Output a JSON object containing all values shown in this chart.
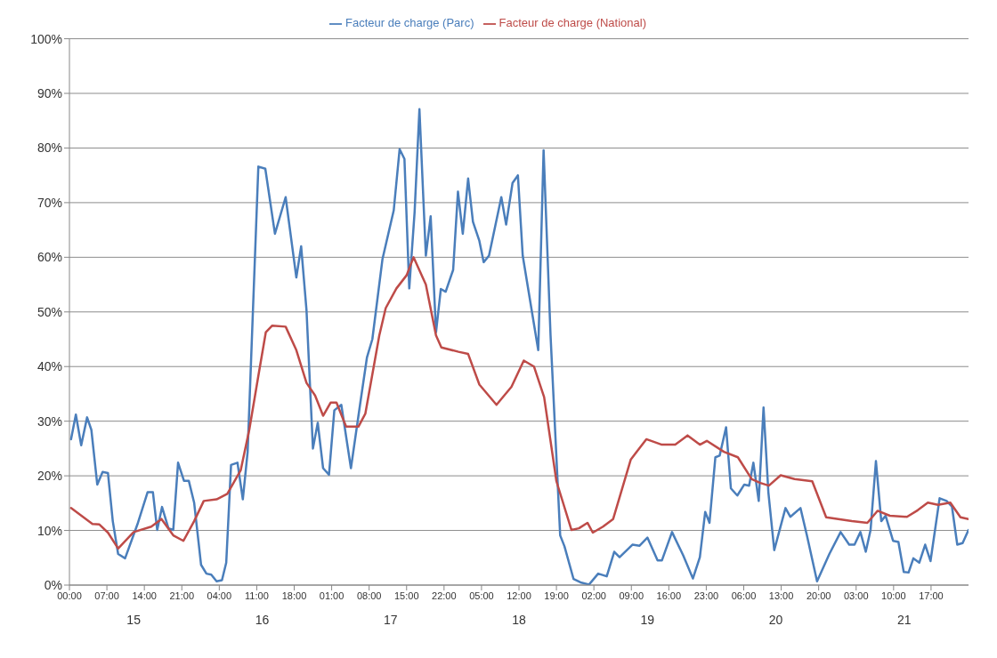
{
  "chart_data": {
    "type": "line",
    "xlim": [
      "--01-15T00:00",
      "--01-22T00:00"
    ],
    "xticks": [
      {
        "value": "--01-15T00:00",
        "label": "00:00"
      },
      {
        "value": "--01-15T07:00",
        "label": "07:00"
      },
      {
        "value": "--01-15T14:00",
        "label": "14:00"
      },
      {
        "value": "--01-15T21:00",
        "label": "21:00"
      },
      {
        "value": "--01-16T04:00",
        "label": "04:00"
      },
      {
        "value": "--01-16T11:00",
        "label": "11:00"
      },
      {
        "value": "--01-16T18:00",
        "label": "18:00"
      },
      {
        "value": "--01-17T01:00",
        "label": "01:00"
      },
      {
        "value": "--01-17T08:00",
        "label": "08:00"
      },
      {
        "value": "--01-17T15:00",
        "label": "15:00"
      },
      {
        "value": "--01-17T22:00",
        "label": "22:00"
      },
      {
        "value": "--01-18T05:00",
        "label": "05:00"
      },
      {
        "value": "--01-18T12:00",
        "label": "12:00"
      },
      {
        "value": "--01-18T19:00",
        "label": "19:00"
      },
      {
        "value": "--01-19T02:00",
        "label": "02:00"
      },
      {
        "value": "--01-19T09:00",
        "label": "09:00"
      },
      {
        "value": "--01-19T16:00",
        "label": "16:00"
      },
      {
        "value": "--01-19T23:00",
        "label": "23:00"
      },
      {
        "value": "--01-20T06:00",
        "label": "06:00"
      },
      {
        "value": "--01-20T13:00",
        "label": "13:00"
      },
      {
        "value": "--01-20T20:00",
        "label": "20:00"
      },
      {
        "value": "--01-21T03:00",
        "label": "03:00"
      },
      {
        "value": "--01-21T10:00",
        "label": "10:00"
      },
      {
        "value": "--01-21T17:00",
        "label": "17:00"
      }
    ],
    "x2lim": [
      "--01-15T00:00",
      "--01-22T00:00"
    ],
    "x2ticks": [
      {
        "value": "--01-15T12:00",
        "label": "15"
      },
      {
        "value": "--01-16T12:00",
        "label": "16"
      },
      {
        "value": "--01-17T12:00",
        "label": "17"
      },
      {
        "value": "--01-18T12:00",
        "label": "18"
      },
      {
        "value": "--01-19T12:00",
        "label": "19"
      },
      {
        "value": "--01-20T12:00",
        "label": "20"
      },
      {
        "value": "--01-21T12:00",
        "label": "21"
      }
    ],
    "ylim": [
      0,
      100
    ],
    "yticks": [
      {
        "value": 0,
        "label": "0%"
      },
      {
        "value": 10,
        "label": "10%"
      },
      {
        "value": 20,
        "label": "20%"
      },
      {
        "value": 30,
        "label": "30%"
      },
      {
        "value": 40,
        "label": "40%"
      },
      {
        "value": 50,
        "label": "50%"
      },
      {
        "value": 60,
        "label": "60%"
      },
      {
        "value": 70,
        "label": "70%"
      },
      {
        "value": 80,
        "label": "80%"
      },
      {
        "value": 90,
        "label": "90%"
      },
      {
        "value": 100,
        "label": "100%"
      }
    ],
    "grid": "y",
    "legend": "top",
    "marker": "none",
    "line_style": "solid",
    "series": [
      {
        "name": "Facteur de charge (Parc)",
        "color": "#4a7ebb",
        "x": [
          "--01-15T00:18",
          "--01-15T01:12",
          "--01-15T02:12",
          "--01-15T03:18",
          "--01-15T04:06",
          "--01-15T05:12",
          "--01-15T06:12",
          "--01-15T07:12",
          "--01-15T08:06",
          "--01-15T09:06",
          "--01-15T10:24",
          "--01-15T12:42",
          "--01-15T14:36",
          "--01-15T15:36",
          "--01-15T16:24",
          "--01-15T17:18",
          "--01-15T18:30",
          "--01-15T19:24",
          "--01-15T20:18",
          "--01-15T21:24",
          "--01-15T22:18",
          "--01-15T23:18",
          "--01-16T00:36",
          "--01-16T01:36",
          "--01-16T02:30",
          "--01-16T03:30",
          "--01-16T04:30",
          "--01-16T05:18",
          "--01-16T06:12",
          "--01-16T07:24",
          "--01-16T08:24",
          "--01-16T09:18",
          "--01-16T11:18",
          "--01-16T12:36",
          "--01-16T14:24",
          "--01-16T16:24",
          "--01-16T18:24",
          "--01-16T19:18",
          "--01-16T20:18",
          "--01-16T21:30",
          "--01-16T22:24",
          "--01-16T23:24",
          "--01-17T00:30",
          "--01-17T01:30",
          "--01-17T02:48",
          "--01-17T04:36",
          "--01-17T06:18",
          "--01-17T07:36",
          "--01-17T08:36",
          "--01-17T10:30",
          "--01-17T12:36",
          "--01-17T13:42",
          "--01-17T14:36",
          "--01-17T15:30",
          "--01-17T16:30",
          "--01-17T17:24",
          "--01-17T18:36",
          "--01-17T19:30",
          "--01-17T20:30",
          "--01-17T21:24",
          "--01-17T22:18",
          "--01-17T23:42",
          "--01-18T00:36",
          "--01-18T01:30",
          "--01-18T02:30",
          "--01-18T03:24",
          "--01-18T04:36",
          "--01-18T05:24",
          "--01-18T06:24",
          "--01-18T08:42",
          "--01-18T09:36",
          "--01-18T10:48",
          "--01-18T11:48",
          "--01-18T12:42",
          "--01-18T15:36",
          "--01-18T16:36",
          "--01-18T17:54",
          "--01-18T19:42",
          "--01-18T20:30",
          "--01-18T22:12",
          "--01-18T23:30",
          "--01-19T01:06",
          "--01-19T02:48",
          "--01-19T04:24",
          "--01-19T05:48",
          "--01-19T06:48",
          "--01-19T09:12",
          "--01-19T10:30",
          "--01-19T12:00",
          "--01-19T13:54",
          "--01-19T14:42",
          "--01-19T16:36",
          "--01-19T18:42",
          "--01-19T20:30",
          "--01-19T21:48",
          "--01-19T22:48",
          "--01-19T23:36",
          "--01-20T00:42",
          "--01-20T01:30",
          "--01-20T02:42",
          "--01-20T03:36",
          "--01-20T04:48",
          "--01-20T06:06",
          "--01-20T07:00",
          "--01-20T07:48",
          "--01-20T08:48",
          "--01-20T09:42",
          "--01-20T10:36",
          "--01-20T11:42",
          "--01-20T13:48",
          "--01-20T14:42",
          "--01-20T16:36",
          "--01-20T17:48",
          "--01-20T19:42",
          "--01-20T22:00",
          "--01-21T00:06",
          "--01-21T01:42",
          "--01-21T02:42",
          "--01-21T03:48",
          "--01-21T04:48",
          "--01-21T05:42",
          "--01-21T06:42",
          "--01-21T07:42",
          "--01-21T08:30",
          "--01-21T09:54",
          "--01-21T10:54",
          "--01-21T11:54",
          "--01-21T12:48",
          "--01-21T13:42",
          "--01-21T14:48",
          "--01-21T15:54",
          "--01-21T16:54",
          "--01-21T18:36",
          "--01-21T19:54",
          "--01-21T20:54",
          "--01-21T21:54",
          "--01-21T22:54",
          "--01-22T00:00"
        ],
        "values": [
          26.7,
          31.2,
          25.6,
          30.7,
          28.4,
          18.4,
          20.7,
          20.5,
          11.7,
          5.7,
          4.9,
          11.1,
          17,
          17,
          10.1,
          14.3,
          10.4,
          10.1,
          22.4,
          19.1,
          19.1,
          15.1,
          3.7,
          2.1,
          1.9,
          0.7,
          0.9,
          4.1,
          22,
          22.4,
          15.7,
          24.4,
          76.6,
          76.2,
          64.3,
          71,
          56.3,
          62,
          50.3,
          25,
          29.7,
          21.4,
          20.2,
          32,
          33,
          21.4,
          33,
          41.7,
          45,
          59.7,
          68.6,
          79.8,
          78,
          54.3,
          68.3,
          87.1,
          60.3,
          67.5,
          46.3,
          54.2,
          53.7,
          57.7,
          72,
          64.3,
          74.4,
          66.5,
          63,
          59.1,
          60.3,
          71,
          66,
          73.6,
          75,
          60.3,
          43,
          79.6,
          45.7,
          9.1,
          7.1,
          1.1,
          0.5,
          0.1,
          2.1,
          1.6,
          6.1,
          5.1,
          7.4,
          7.2,
          8.7,
          4.5,
          4.5,
          9.7,
          5.4,
          1.2,
          5.1,
          13.4,
          11.4,
          23.4,
          23.7,
          28.9,
          17.7,
          16.4,
          18.4,
          18.2,
          22.4,
          15.4,
          32.5,
          17,
          6.4,
          14.1,
          12.5,
          14.1,
          9.1,
          0.7,
          5.7,
          9.7,
          7.4,
          7.4,
          9.7,
          6.1,
          10.1,
          22.7,
          11.7,
          12.7,
          8.1,
          7.9,
          2.4,
          2.3,
          4.9,
          4.1,
          7.4,
          4.4,
          15.9,
          15.4,
          14.4,
          7.4,
          7.7,
          10.1
        ]
      },
      {
        "name": "Facteur de charge (National)",
        "color": "#be4b48",
        "x": [
          "--01-15T00:18",
          "--01-15T04:18",
          "--01-15T05:36",
          "--01-15T07:12",
          "--01-15T09:06",
          "--01-15T12:00",
          "--01-15T15:18",
          "--01-15T17:12",
          "--01-15T19:24",
          "--01-15T21:18",
          "--01-15T23:18",
          "--01-16T01:06",
          "--01-16T03:30",
          "--01-16T05:30",
          "--01-16T08:00",
          "--01-16T09:36",
          "--01-16T11:18",
          "--01-16T12:42",
          "--01-16T13:54",
          "--01-16T16:24",
          "--01-16T18:24",
          "--01-16T20:18",
          "--01-16T21:54",
          "--01-16T23:24",
          "--01-17T00:48",
          "--01-17T01:54",
          "--01-17T03:42",
          "--01-17T06:00",
          "--01-17T07:18",
          "--01-17T09:54",
          "--01-17T11:06",
          "--01-17T13:06",
          "--01-17T15:00",
          "--01-17T16:18",
          "--01-17T18:36",
          "--01-17T20:30",
          "--01-17T21:30",
          "--01-18T00:42",
          "--01-18T02:30",
          "--01-18T04:36",
          "--01-18T07:48",
          "--01-18T10:36",
          "--01-18T12:54",
          "--01-18T14:48",
          "--01-18T16:42",
          "--01-18T19:00",
          "--01-18T21:48",
          "--01-18T23:12",
          "--01-19T00:48",
          "--01-19T01:48",
          "--01-19T03:42",
          "--01-19T05:36",
          "--01-19T08:54",
          "--01-19T11:48",
          "--01-19T14:42",
          "--01-19T17:12",
          "--01-19T19:30",
          "--01-19T21:48",
          "--01-19T23:06",
          "--01-20T02:18",
          "--01-20T04:54",
          "--01-20T07:30",
          "--01-20T09:06",
          "--01-20T10:42",
          "--01-20T12:54",
          "--01-20T15:30",
          "--01-20T18:48",
          "--01-20T21:24",
          "--01-21T02:12",
          "--01-21T05:06",
          "--01-21T07:00",
          "--01-21T09:18",
          "--01-21T12:30",
          "--01-21T14:30",
          "--01-21T16:24",
          "--01-21T18:18",
          "--01-21T20:36",
          "--01-21T22:30",
          "--01-22T00:00"
        ],
        "values": [
          14.1,
          11.2,
          11.1,
          9.6,
          6.7,
          9.7,
          10.7,
          12.1,
          9.1,
          8.1,
          11.7,
          15.4,
          15.7,
          16.7,
          21,
          28.4,
          38.3,
          46.3,
          47.5,
          47.3,
          43,
          37,
          34.7,
          31,
          33.4,
          33.4,
          29,
          29,
          31.4,
          45.7,
          50.7,
          54.3,
          56.7,
          60,
          55,
          45.7,
          43.5,
          42.7,
          42.3,
          36.7,
          33,
          36.3,
          41.1,
          40,
          34.4,
          19,
          10.1,
          10.4,
          11.4,
          9.6,
          10.7,
          12.1,
          23,
          26.7,
          25.7,
          25.7,
          27.4,
          25.7,
          26.4,
          24.4,
          23.4,
          19.4,
          18.7,
          18.2,
          20.1,
          19.4,
          19,
          12.4,
          11.7,
          11.4,
          13.6,
          12.7,
          12.5,
          13.7,
          15.1,
          14.7,
          15.1,
          12.4,
          12.1
        ]
      }
    ]
  }
}
